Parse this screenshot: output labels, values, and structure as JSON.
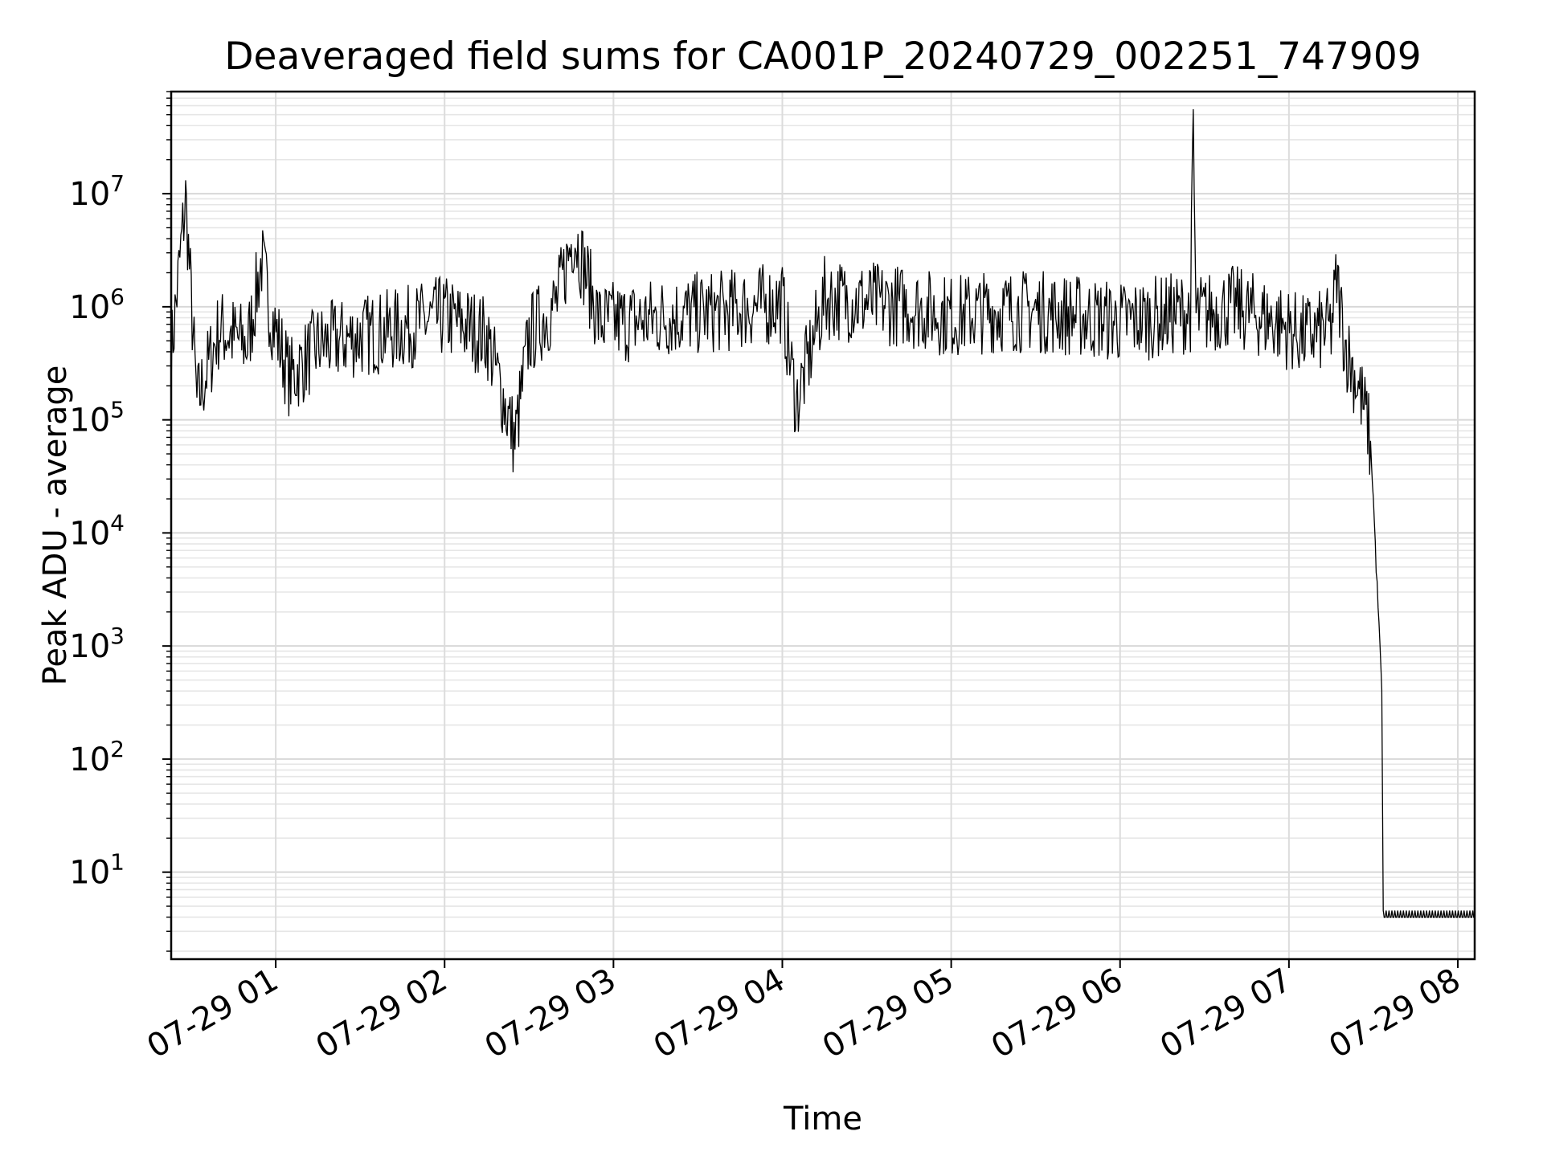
{
  "chart_data": {
    "type": "line",
    "title": "Deaveraged field sums for CA001P_20240729_002251_747909",
    "xlabel": "Time",
    "ylabel": "Peak ADU - average",
    "yscale": "log",
    "ylim": [
      1.7,
      80000000
    ],
    "xlim": [
      "2024-07-29 00:22:51",
      "2024-07-29 08:06:00"
    ],
    "grid": true,
    "x_ticks": [
      "07-29 01",
      "07-29 02",
      "07-29 03",
      "07-29 04",
      "07-29 05",
      "07-29 06",
      "07-29 07",
      "07-29 08"
    ],
    "y_ticks": [
      {
        "base": "10",
        "exp": "1",
        "value": 10
      },
      {
        "base": "10",
        "exp": "2",
        "value": 100
      },
      {
        "base": "10",
        "exp": "3",
        "value": 1000
      },
      {
        "base": "10",
        "exp": "4",
        "value": 10000
      },
      {
        "base": "10",
        "exp": "5",
        "value": 100000
      },
      {
        "base": "10",
        "exp": "6",
        "value": 1000000
      },
      {
        "base": "10",
        "exp": "7",
        "value": 10000000
      }
    ],
    "series": [
      {
        "color": "#000000",
        "points": [
          [
            "2024-07-29 00:22:51",
            400000
          ],
          [
            "2024-07-29 00:28:00",
            10000000
          ],
          [
            "2024-07-29 00:32:00",
            150000
          ],
          [
            "2024-07-29 00:40:00",
            700000
          ],
          [
            "2024-07-29 00:50:00",
            500000
          ],
          [
            "2024-07-29 00:55:00",
            2800000
          ],
          [
            "2024-07-29 00:58:00",
            1000000
          ],
          [
            "2024-07-29 01:05:00",
            250000
          ],
          [
            "2024-07-29 01:15:00",
            500000
          ],
          [
            "2024-07-29 01:30:00",
            600000
          ],
          [
            "2024-07-29 01:45:00",
            700000
          ],
          [
            "2024-07-29 02:00:00",
            900000
          ],
          [
            "2024-07-29 02:15:00",
            600000
          ],
          [
            "2024-07-29 02:25:00",
            70000
          ],
          [
            "2024-07-29 02:30:00",
            600000
          ],
          [
            "2024-07-29 02:40:00",
            1200000
          ],
          [
            "2024-07-29 02:46:00",
            5000000
          ],
          [
            "2024-07-29 02:55:00",
            800000
          ],
          [
            "2024-07-29 03:05:00",
            800000
          ],
          [
            "2024-07-29 03:20:00",
            900000
          ],
          [
            "2024-07-29 03:40:00",
            1000000
          ],
          [
            "2024-07-29 04:00:00",
            1200000
          ],
          [
            "2024-07-29 04:05:00",
            150000
          ],
          [
            "2024-07-29 04:15:00",
            1300000
          ],
          [
            "2024-07-29 04:30:00",
            1200000
          ],
          [
            "2024-07-29 04:45:00",
            1100000
          ],
          [
            "2024-07-29 05:00:00",
            900000
          ],
          [
            "2024-07-29 05:15:00",
            1000000
          ],
          [
            "2024-07-29 05:30:00",
            1000000
          ],
          [
            "2024-07-29 05:45:00",
            900000
          ],
          [
            "2024-07-29 06:00:00",
            800000
          ],
          [
            "2024-07-29 06:15:00",
            900000
          ],
          [
            "2024-07-29 06:25:00",
            1000000
          ],
          [
            "2024-07-29 06:26:00",
            38000000
          ],
          [
            "2024-07-29 06:27:00",
            900000
          ],
          [
            "2024-07-29 06:40:00",
            1100000
          ],
          [
            "2024-07-29 06:55:00",
            800000
          ],
          [
            "2024-07-29 07:05:00",
            600000
          ],
          [
            "2024-07-29 07:15:00",
            700000
          ],
          [
            "2024-07-29 07:17:00",
            1900000
          ],
          [
            "2024-07-29 07:20:00",
            500000
          ],
          [
            "2024-07-29 07:25:00",
            200000
          ],
          [
            "2024-07-29 07:28:00",
            100000
          ],
          [
            "2024-07-29 07:29:00",
            60000
          ],
          [
            "2024-07-29 07:30:00",
            20000
          ],
          [
            "2024-07-29 07:31:00",
            5000
          ],
          [
            "2024-07-29 07:32:00",
            1500
          ],
          [
            "2024-07-29 07:33:00",
            400
          ],
          [
            "2024-07-29 07:33:30",
            4
          ],
          [
            "2024-07-29 08:06:00",
            4
          ]
        ]
      }
    ]
  }
}
